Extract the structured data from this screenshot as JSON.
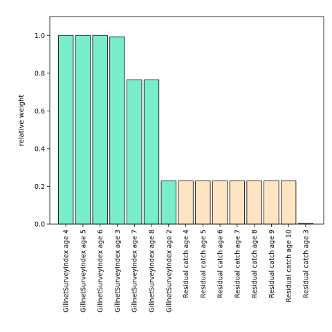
{
  "chart_data": {
    "type": "bar",
    "title": "",
    "xlabel": "",
    "ylabel": "relative weight",
    "ylim": [
      0,
      1.1
    ],
    "yticks": [
      0.0,
      0.2,
      0.4,
      0.6,
      0.8,
      1.0
    ],
    "ytick_labels": [
      "0.0",
      "0.2",
      "0.4",
      "0.6",
      "0.8",
      "1.0"
    ],
    "grid": false,
    "legend": "none",
    "categories": [
      "GillnetSurveyIndex age 4",
      "GillnetSurveyIndex age 5",
      "GillnetSurveyIndex age 6",
      "GillnetSurveyIndex age 3",
      "GillnetSurveyIndex age 7",
      "GillnetSurveyIndex age 8",
      "GillnetSurveyIndex age 2",
      "Residual catch age 4",
      "Residual catch age 5",
      "Residual catch age 6",
      "Residual catch age 7",
      "Residual catch age 8",
      "Residual catch age 9",
      "Residual catch age 10",
      "Residual catch age 3"
    ],
    "values": [
      1.0,
      1.0,
      1.0,
      0.993,
      0.765,
      0.765,
      0.229,
      0.229,
      0.229,
      0.229,
      0.229,
      0.229,
      0.229,
      0.229,
      0.004
    ],
    "group_colors": {
      "GillnetSurveyIndex": "#77EDC9",
      "Residual catch": "#FFE4C4"
    },
    "bar_edge_color": "#000000"
  }
}
